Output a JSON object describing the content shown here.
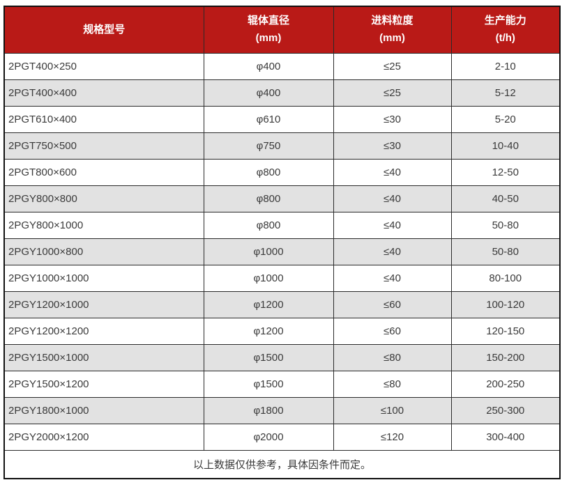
{
  "colors": {
    "header_bg": "#b91a17",
    "header_text": "#ffffff",
    "row_bg": "#ffffff",
    "row_stripe": "#e2e2e2",
    "grid_line": "#2a2a2a",
    "outer_border": "#111111",
    "text": "#3a3a3a"
  },
  "table": {
    "columns": [
      {
        "label": "规格型号",
        "unit": ""
      },
      {
        "label": "辊体直径",
        "unit": "(mm)"
      },
      {
        "label": "进料粒度",
        "unit": "(mm)"
      },
      {
        "label": "生产能力",
        "unit": "(t/h)"
      }
    ],
    "rows": [
      [
        "2PGT400×250",
        "φ400",
        "≤25",
        "2-10"
      ],
      [
        "2PGT400×400",
        "φ400",
        "≤25",
        "5-12"
      ],
      [
        "2PGT610×400",
        "φ610",
        "≤30",
        "5-20"
      ],
      [
        "2PGT750×500",
        "φ750",
        "≤30",
        "10-40"
      ],
      [
        "2PGT800×600",
        "φ800",
        "≤40",
        "12-50"
      ],
      [
        "2PGY800×800",
        "φ800",
        "≤40",
        "40-50"
      ],
      [
        "2PGY800×1000",
        "φ800",
        "≤40",
        "50-80"
      ],
      [
        "2PGY1000×800",
        "φ1000",
        "≤40",
        "50-80"
      ],
      [
        "2PGY1000×1000",
        "φ1000",
        "≤40",
        "80-100"
      ],
      [
        "2PGY1200×1000",
        "φ1200",
        "≤60",
        "100-120"
      ],
      [
        "2PGY1200×1200",
        "φ1200",
        "≤60",
        "120-150"
      ],
      [
        "2PGY1500×1000",
        "φ1500",
        "≤80",
        "150-200"
      ],
      [
        "2PGY1500×1200",
        "φ1500",
        "≤80",
        "200-250"
      ],
      [
        "2PGY1800×1000",
        "φ1800",
        "≤100",
        "250-300"
      ],
      [
        "2PGY2000×1200",
        "φ2000",
        "≤120",
        "300-400"
      ]
    ],
    "footnote": "以上数据仅供参考，具体因条件而定。"
  }
}
